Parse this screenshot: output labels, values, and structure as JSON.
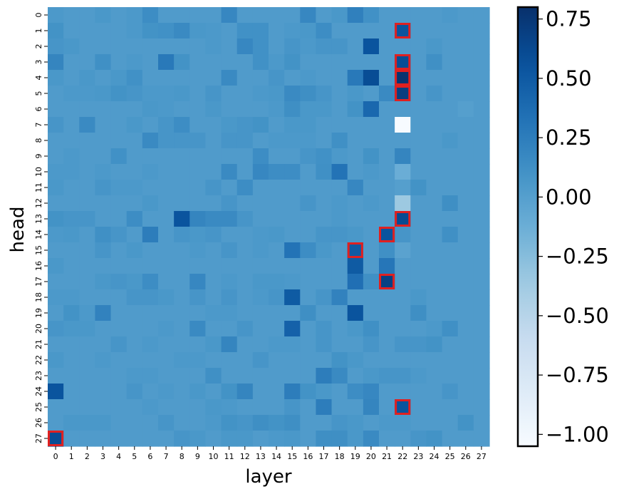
{
  "chart_data": {
    "type": "heatmap",
    "xlabel": "layer",
    "ylabel": "head",
    "x_ticks": [
      "0",
      "1",
      "2",
      "3",
      "4",
      "5",
      "6",
      "7",
      "8",
      "9",
      "10",
      "11",
      "12",
      "13",
      "14",
      "15",
      "16",
      "17",
      "18",
      "19",
      "20",
      "21",
      "22",
      "23",
      "24",
      "25",
      "26",
      "27"
    ],
    "y_ticks": [
      "0",
      "1",
      "2",
      "3",
      "4",
      "5",
      "6",
      "7",
      "8",
      "9",
      "10",
      "11",
      "12",
      "13",
      "14",
      "15",
      "16",
      "17",
      "18",
      "19",
      "20",
      "21",
      "22",
      "23",
      "24",
      "25",
      "26",
      "27"
    ],
    "colorbar": {
      "vmin": -1.05,
      "vmax": 0.8,
      "ticks": [
        0.75,
        0.5,
        0.25,
        0.0,
        -0.25,
        -0.5,
        -0.75,
        -1.0
      ],
      "tick_labels": [
        "0.75",
        "0.50",
        "0.25",
        "0.00",
        "−0.25",
        "−0.50",
        "−0.75",
        "−1.00"
      ],
      "colormap": "Blues"
    },
    "highlight_color": "#e02020",
    "highlighted_cells": [
      {
        "layer": 22,
        "head": 1
      },
      {
        "layer": 22,
        "head": 3
      },
      {
        "layer": 22,
        "head": 4
      },
      {
        "layer": 22,
        "head": 5
      },
      {
        "layer": 22,
        "head": 13
      },
      {
        "layer": 21,
        "head": 14
      },
      {
        "layer": 19,
        "head": 15
      },
      {
        "layer": 21,
        "head": 17
      },
      {
        "layer": 22,
        "head": 25
      },
      {
        "layer": 0,
        "head": 27
      }
    ],
    "values": [
      [
        0.05,
        0.03,
        0.03,
        0.06,
        0.03,
        0.05,
        0.14,
        0.03,
        0.03,
        0.03,
        0.03,
        0.18,
        0.03,
        0.03,
        0.03,
        0.03,
        0.18,
        0.03,
        0.06,
        0.23,
        0.11,
        0.03,
        0.03,
        0.03,
        0.03,
        0.05,
        0.03,
        0.03
      ],
      [
        0.1,
        0.03,
        0.03,
        0.03,
        0.03,
        0.05,
        0.1,
        0.11,
        0.16,
        0.06,
        0.05,
        0.03,
        0.11,
        0.11,
        0.03,
        0.05,
        0.06,
        0.14,
        0.03,
        0.03,
        0.03,
        0.03,
        0.55,
        0.03,
        0.03,
        0.03,
        0.03,
        0.03
      ],
      [
        0.08,
        0.06,
        0.03,
        0.03,
        0.03,
        0.03,
        0.03,
        0.03,
        0.03,
        0.03,
        0.05,
        0.03,
        0.18,
        0.11,
        0.03,
        0.08,
        0.05,
        0.08,
        0.08,
        0.03,
        0.55,
        0.03,
        0.03,
        0.03,
        0.06,
        0.03,
        0.03,
        0.03
      ],
      [
        0.2,
        0.03,
        0.03,
        0.12,
        0.03,
        0.05,
        0.03,
        0.28,
        0.1,
        0.03,
        0.03,
        0.03,
        0.03,
        0.11,
        0.05,
        0.1,
        0.03,
        0.03,
        0.03,
        0.03,
        0.03,
        0.03,
        0.6,
        0.03,
        0.12,
        0.03,
        0.03,
        0.03
      ],
      [
        0.06,
        0.03,
        0.06,
        0.03,
        0.06,
        0.11,
        0.03,
        0.03,
        0.03,
        0.03,
        0.03,
        0.16,
        0.03,
        0.03,
        0.08,
        0.03,
        0.05,
        0.03,
        0.03,
        0.28,
        0.6,
        0.03,
        0.78,
        0.03,
        0.03,
        0.03,
        0.03,
        0.03
      ],
      [
        0.03,
        0.05,
        0.05,
        0.06,
        0.1,
        0.08,
        0.05,
        0.05,
        0.06,
        0.03,
        0.08,
        0.03,
        0.03,
        0.05,
        0.06,
        0.16,
        0.13,
        0.08,
        0.03,
        0.06,
        0.03,
        0.16,
        0.7,
        0.03,
        0.08,
        0.03,
        0.03,
        0.03
      ],
      [
        0.03,
        0.03,
        0.03,
        0.03,
        0.03,
        0.03,
        0.06,
        0.05,
        0.03,
        0.03,
        0.06,
        0.03,
        0.03,
        0.03,
        0.05,
        0.13,
        0.06,
        0.06,
        0.03,
        0.1,
        0.4,
        0.03,
        0.03,
        0.03,
        0.03,
        0.03,
        0.0,
        0.03
      ],
      [
        0.08,
        0.03,
        0.16,
        0.03,
        0.03,
        0.06,
        0.03,
        0.08,
        0.14,
        0.03,
        0.03,
        0.06,
        0.08,
        0.1,
        0.03,
        0.06,
        0.06,
        0.03,
        0.03,
        0.03,
        0.03,
        0.03,
        -1.05,
        0.03,
        0.03,
        0.03,
        0.03,
        0.03
      ],
      [
        0.03,
        0.03,
        0.03,
        0.03,
        0.03,
        0.03,
        0.16,
        0.08,
        0.08,
        0.08,
        0.03,
        0.08,
        0.08,
        0.03,
        0.05,
        0.05,
        0.05,
        0.03,
        0.12,
        0.03,
        0.03,
        0.03,
        0.03,
        0.03,
        0.03,
        0.06,
        0.03,
        0.03
      ],
      [
        0.03,
        0.05,
        0.03,
        0.03,
        0.11,
        0.03,
        0.03,
        0.03,
        0.03,
        0.03,
        0.03,
        0.03,
        0.03,
        0.14,
        0.03,
        0.03,
        0.08,
        0.11,
        0.05,
        0.03,
        0.1,
        0.03,
        0.2,
        0.03,
        0.03,
        0.03,
        0.03,
        0.03
      ],
      [
        0.05,
        0.05,
        0.03,
        0.05,
        0.03,
        0.03,
        0.05,
        0.03,
        0.03,
        0.03,
        0.03,
        0.16,
        0.03,
        0.18,
        0.14,
        0.14,
        0.03,
        0.12,
        0.32,
        0.03,
        0.05,
        0.03,
        -0.12,
        0.03,
        0.03,
        0.03,
        0.03,
        0.03
      ],
      [
        0.06,
        0.03,
        0.03,
        0.08,
        0.05,
        0.05,
        0.03,
        0.03,
        0.03,
        0.03,
        0.08,
        0.03,
        0.14,
        0.03,
        0.03,
        0.03,
        0.03,
        0.03,
        0.03,
        0.18,
        0.03,
        0.03,
        0.0,
        0.1,
        0.03,
        0.03,
        0.03,
        0.03
      ],
      [
        0.03,
        0.03,
        0.03,
        0.03,
        0.03,
        0.03,
        0.06,
        0.03,
        0.03,
        0.03,
        0.03,
        0.08,
        0.03,
        0.03,
        0.03,
        0.03,
        0.08,
        0.03,
        0.05,
        0.03,
        0.05,
        0.03,
        -0.35,
        0.03,
        0.03,
        0.13,
        0.03,
        0.03
      ],
      [
        0.1,
        0.08,
        0.08,
        0.03,
        0.03,
        0.14,
        0.03,
        0.03,
        0.55,
        0.2,
        0.16,
        0.16,
        0.08,
        0.03,
        0.03,
        0.03,
        0.03,
        0.03,
        0.05,
        0.03,
        0.03,
        0.03,
        0.62,
        0.03,
        0.03,
        0.03,
        0.03,
        0.03
      ],
      [
        0.05,
        0.06,
        0.03,
        0.12,
        0.08,
        0.03,
        0.25,
        0.03,
        0.08,
        0.06,
        0.08,
        0.03,
        0.03,
        0.05,
        0.06,
        0.03,
        0.03,
        0.08,
        0.08,
        0.06,
        0.03,
        0.55,
        0.08,
        0.03,
        0.03,
        0.12,
        0.03,
        0.03
      ],
      [
        0.03,
        0.03,
        0.03,
        0.08,
        0.03,
        0.06,
        0.03,
        0.03,
        0.03,
        0.05,
        0.03,
        0.08,
        0.03,
        0.05,
        0.03,
        0.32,
        0.14,
        0.06,
        0.03,
        0.5,
        0.03,
        0.12,
        -0.03,
        0.03,
        0.03,
        0.03,
        0.03,
        0.03
      ],
      [
        0.06,
        0.03,
        0.03,
        0.03,
        0.03,
        0.03,
        0.03,
        0.03,
        0.03,
        0.03,
        0.03,
        0.03,
        0.03,
        0.03,
        0.03,
        0.03,
        0.03,
        0.03,
        0.03,
        0.5,
        0.03,
        0.3,
        0.03,
        0.03,
        0.03,
        0.03,
        0.03,
        0.03
      ],
      [
        0.03,
        0.03,
        0.03,
        0.06,
        0.08,
        0.06,
        0.14,
        0.03,
        0.03,
        0.18,
        0.03,
        0.05,
        0.03,
        0.06,
        0.06,
        0.05,
        0.03,
        0.03,
        0.03,
        0.35,
        0.12,
        0.68,
        0.03,
        0.03,
        0.03,
        0.03,
        0.03,
        0.03
      ],
      [
        0.05,
        0.05,
        0.03,
        0.03,
        0.03,
        0.08,
        0.08,
        0.06,
        0.03,
        0.08,
        0.03,
        0.08,
        0.03,
        0.05,
        0.08,
        0.5,
        0.03,
        0.08,
        0.22,
        0.03,
        0.03,
        0.03,
        0.03,
        0.06,
        0.03,
        0.03,
        0.03,
        0.03
      ],
      [
        0.03,
        0.1,
        0.05,
        0.22,
        0.03,
        0.03,
        0.03,
        0.03,
        0.03,
        0.03,
        0.05,
        0.05,
        0.03,
        0.03,
        0.03,
        0.03,
        0.13,
        0.03,
        0.03,
        0.55,
        0.03,
        0.03,
        0.03,
        0.13,
        0.03,
        0.03,
        0.03,
        0.03
      ],
      [
        0.08,
        0.06,
        0.06,
        0.03,
        0.03,
        0.03,
        0.03,
        0.05,
        0.03,
        0.16,
        0.03,
        0.03,
        0.08,
        0.03,
        0.03,
        0.45,
        0.03,
        0.08,
        0.03,
        0.06,
        0.12,
        0.03,
        0.03,
        0.03,
        0.05,
        0.12,
        0.03,
        0.03
      ],
      [
        0.03,
        0.03,
        0.03,
        0.03,
        0.08,
        0.03,
        0.05,
        0.03,
        0.03,
        0.03,
        0.06,
        0.2,
        0.03,
        0.03,
        0.05,
        0.05,
        0.03,
        0.08,
        0.03,
        0.03,
        0.08,
        0.03,
        0.08,
        0.08,
        0.1,
        0.03,
        0.03,
        0.03
      ],
      [
        0.06,
        0.03,
        0.03,
        0.05,
        0.03,
        0.03,
        0.03,
        0.03,
        0.05,
        0.05,
        0.03,
        0.03,
        0.03,
        0.08,
        0.03,
        0.03,
        0.03,
        0.03,
        0.1,
        0.06,
        0.03,
        0.03,
        0.03,
        0.03,
        0.03,
        0.03,
        0.03,
        0.03
      ],
      [
        0.03,
        0.03,
        0.03,
        0.03,
        0.03,
        0.05,
        0.05,
        0.03,
        0.03,
        0.03,
        0.12,
        0.03,
        0.03,
        0.03,
        0.03,
        0.03,
        0.03,
        0.25,
        0.16,
        0.03,
        0.06,
        0.08,
        0.08,
        0.05,
        0.03,
        0.03,
        0.03,
        0.03
      ],
      [
        0.55,
        0.03,
        0.03,
        0.03,
        0.03,
        0.08,
        0.03,
        0.05,
        0.03,
        0.06,
        0.03,
        0.1,
        0.2,
        0.03,
        0.03,
        0.25,
        0.1,
        0.06,
        0.03,
        0.14,
        0.18,
        0.03,
        0.03,
        0.03,
        0.03,
        0.08,
        0.03,
        0.03
      ],
      [
        0.03,
        0.03,
        0.03,
        0.03,
        0.03,
        0.03,
        0.05,
        0.03,
        0.03,
        0.03,
        0.06,
        0.05,
        0.03,
        0.03,
        0.03,
        0.08,
        0.03,
        0.25,
        0.03,
        0.03,
        0.2,
        0.03,
        0.55,
        0.03,
        0.03,
        0.03,
        0.03,
        0.03
      ],
      [
        0.03,
        0.06,
        0.06,
        0.06,
        0.03,
        0.03,
        0.03,
        0.08,
        0.03,
        0.03,
        0.05,
        0.1,
        0.08,
        0.13,
        0.1,
        0.13,
        0.03,
        0.03,
        0.08,
        0.06,
        0.03,
        0.05,
        0.05,
        0.03,
        0.03,
        0.03,
        0.1,
        0.03
      ],
      [
        0.6,
        0.03,
        0.03,
        0.03,
        0.03,
        0.03,
        0.03,
        0.03,
        0.08,
        0.06,
        0.03,
        0.06,
        0.06,
        0.03,
        0.05,
        0.06,
        0.03,
        0.13,
        0.13,
        0.06,
        0.16,
        0.03,
        0.03,
        0.08,
        0.1,
        0.03,
        0.03,
        0.03
      ]
    ]
  }
}
